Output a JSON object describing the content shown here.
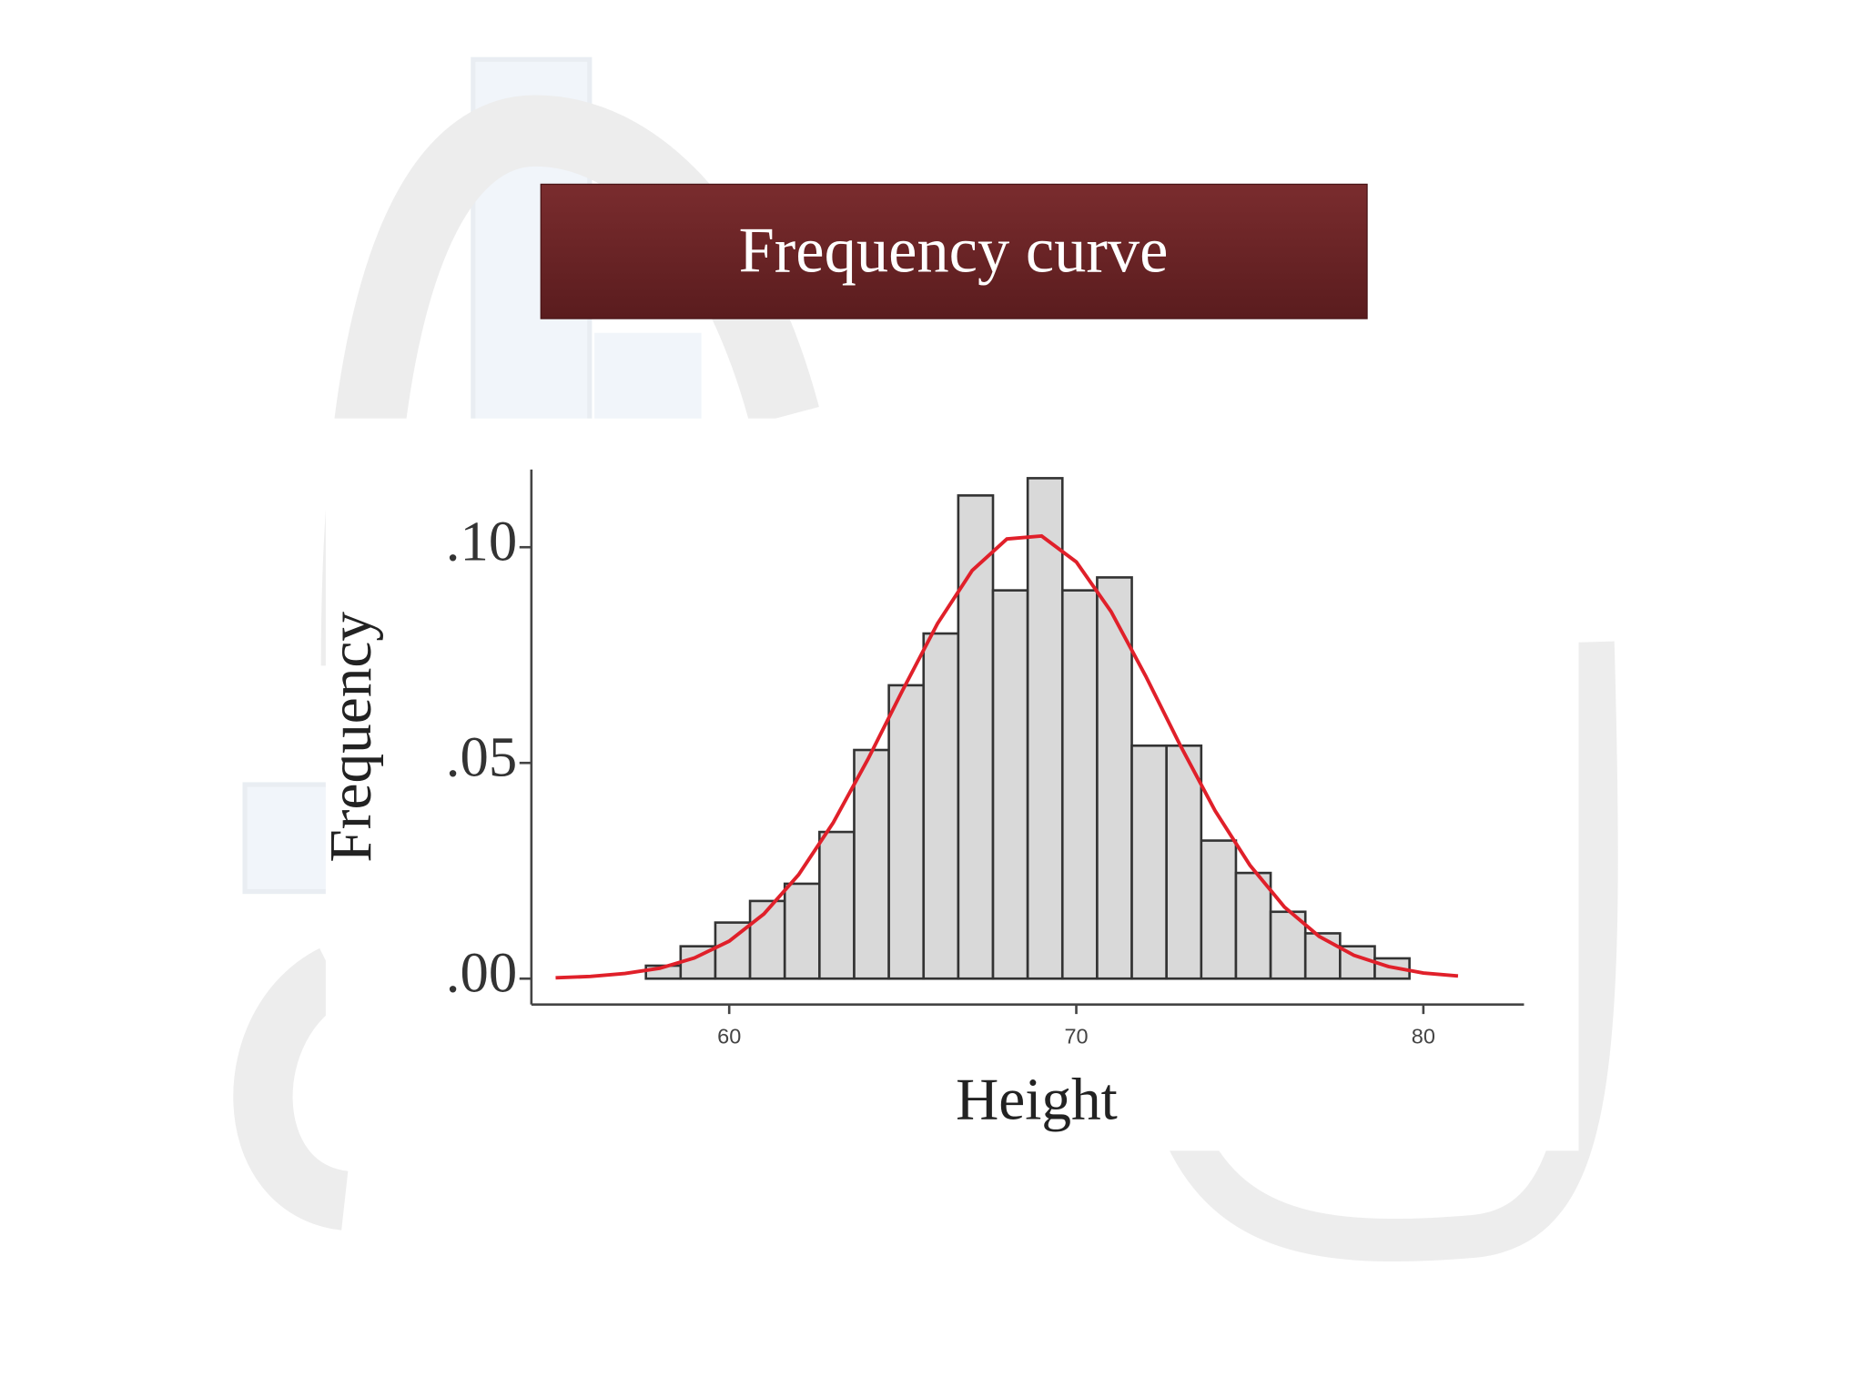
{
  "title": "Frequency curve",
  "chart_data": {
    "type": "histogram",
    "x_label": "Height",
    "y_label": "Frequency",
    "bins": [
      57.6,
      58.6,
      59.6,
      60.6,
      61.6,
      62.6,
      63.6,
      64.6,
      65.6,
      66.6,
      67.6,
      68.6,
      69.6,
      70.6,
      71.6,
      72.6,
      73.6,
      74.6,
      75.6,
      76.6,
      77.6,
      78.6,
      79.6
    ],
    "values": [
      0.003,
      0.0075,
      0.013,
      0.018,
      0.022,
      0.034,
      0.053,
      0.068,
      0.08,
      0.112,
      0.09,
      0.116,
      0.09,
      0.093,
      0.054,
      0.054,
      0.032,
      0.0245,
      0.0155,
      0.0105,
      0.0075,
      0.0047
    ],
    "color": "#d9d9d9",
    "curve": {
      "color": "#e0202a",
      "x": [
        55,
        56,
        57,
        58,
        59,
        60,
        61,
        62,
        63,
        64,
        65,
        66,
        67,
        68,
        69,
        70,
        71,
        72,
        73,
        74,
        75,
        76,
        77,
        78,
        79,
        80,
        81
      ],
      "values": [
        0.0002,
        0.0005,
        0.0012,
        0.0024,
        0.0048,
        0.0087,
        0.015,
        0.0241,
        0.0362,
        0.0509,
        0.0669,
        0.0823,
        0.0946,
        0.1019,
        0.1026,
        0.0966,
        0.0851,
        0.0701,
        0.054,
        0.0389,
        0.0263,
        0.0166,
        0.0098,
        0.0054,
        0.0028,
        0.0013,
        0.0006
      ]
    },
    "xlim": [
      54.3,
      82.9
    ],
    "xticks": [
      60,
      70,
      80
    ],
    "ylim": [
      -0.006,
      0.118
    ],
    "yticks": [
      {
        "value": 0,
        "label": ".00"
      },
      {
        "value": 0.05,
        "label": ".05"
      },
      {
        "value": 0.1,
        "label": ".10"
      }
    ]
  }
}
